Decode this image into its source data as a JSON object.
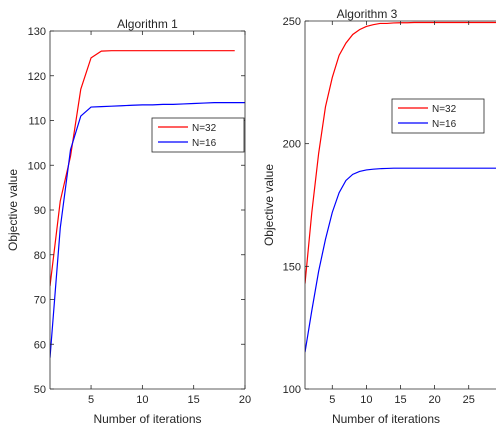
{
  "chart_data": [
    {
      "type": "line",
      "title": "Algorithm 1",
      "xlabel": "Number of iterations",
      "ylabel": "Objective value",
      "xlim": [
        1,
        20
      ],
      "ylim": [
        50,
        130
      ],
      "xticks": [
        5,
        10,
        15,
        20
      ],
      "yticks": [
        50,
        60,
        70,
        80,
        90,
        100,
        110,
        120,
        130
      ],
      "grid": false,
      "legend_position": "right-middle",
      "series": [
        {
          "name": "N=32",
          "color": "#ff0000",
          "x": [
            1,
            2,
            3,
            4,
            5,
            6,
            7,
            8,
            9,
            10,
            11,
            12,
            13,
            14,
            15,
            16,
            17,
            18,
            19
          ],
          "y": [
            73,
            92,
            102,
            117,
            124,
            125.5,
            125.6,
            125.6,
            125.6,
            125.6,
            125.6,
            125.6,
            125.6,
            125.6,
            125.6,
            125.6,
            125.6,
            125.6,
            125.6
          ]
        },
        {
          "name": "N=16",
          "color": "#0000ff",
          "x": [
            1,
            2,
            3,
            4,
            5,
            6,
            7,
            8,
            9,
            10,
            11,
            12,
            13,
            14,
            15,
            16,
            17,
            18,
            19,
            20
          ],
          "y": [
            57,
            86,
            103.5,
            111,
            113,
            113.1,
            113.2,
            113.3,
            113.4,
            113.5,
            113.5,
            113.6,
            113.6,
            113.7,
            113.8,
            113.9,
            114,
            114,
            114,
            114
          ]
        }
      ]
    },
    {
      "type": "line",
      "title": "Algorithm 3",
      "xlabel": "Number of iterations",
      "ylabel": "Objective value",
      "xlim": [
        1,
        29
      ],
      "ylim": [
        100,
        250
      ],
      "xticks": [
        5,
        10,
        15,
        20,
        25
      ],
      "yticks": [
        100,
        150,
        200,
        250
      ],
      "grid": false,
      "legend_position": "top-right",
      "series": [
        {
          "name": "N=32",
          "color": "#ff0000",
          "x": [
            1,
            2,
            3,
            4,
            5,
            6,
            7,
            8,
            9,
            10,
            11,
            12,
            13,
            14,
            15,
            16,
            17,
            18,
            19,
            20,
            21,
            22,
            23,
            24,
            25,
            26,
            27,
            28,
            29
          ],
          "y": [
            143,
            172,
            196,
            215,
            227,
            236,
            241,
            244.5,
            246.5,
            247.8,
            248.5,
            249,
            249,
            249.2,
            249.3,
            249.3,
            249.4,
            249.4,
            249.4,
            249.4,
            249.4,
            249.4,
            249.4,
            249.4,
            249.4,
            249.4,
            249.4,
            249.4,
            249.4
          ]
        },
        {
          "name": "N=16",
          "color": "#0000ff",
          "x": [
            1,
            2,
            3,
            4,
            5,
            6,
            7,
            8,
            9,
            10,
            11,
            12,
            13,
            14,
            15,
            16,
            17,
            18,
            19,
            20,
            21,
            22,
            23,
            24,
            25,
            26,
            27,
            28,
            29
          ],
          "y": [
            115,
            132,
            148,
            161,
            172,
            180,
            185,
            187.5,
            188.7,
            189.3,
            189.6,
            189.8,
            189.9,
            190,
            190,
            190,
            190,
            190,
            190,
            190,
            190,
            190,
            190,
            190,
            190,
            190,
            190,
            190,
            190
          ]
        }
      ]
    }
  ]
}
